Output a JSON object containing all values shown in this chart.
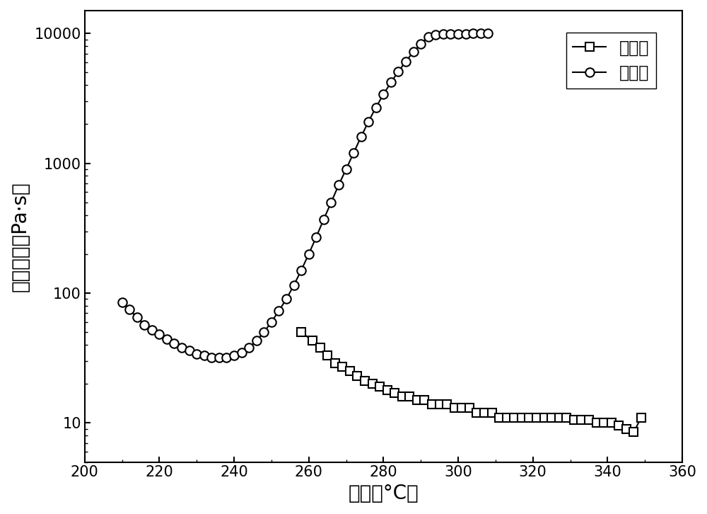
{
  "title": "",
  "xlabel": "温度（°C）",
  "ylabel": "复数粘度（Pa·s）",
  "xlim": [
    200,
    360
  ],
  "ylim_log": [
    5,
    15000
  ],
  "xticks": [
    200,
    220,
    240,
    260,
    280,
    300,
    320,
    340,
    360
  ],
  "yticks": [
    10,
    100,
    1000,
    10000
  ],
  "ytick_labels": [
    "10",
    "100",
    "1000",
    "10000"
  ],
  "legend1": "对比例",
  "legend2": "实施例",
  "series1_x": [
    258,
    261,
    263,
    265,
    267,
    269,
    271,
    273,
    275,
    277,
    279,
    281,
    283,
    285,
    287,
    289,
    291,
    293,
    295,
    297,
    299,
    301,
    303,
    305,
    307,
    309,
    311,
    313,
    315,
    317,
    319,
    321,
    323,
    325,
    327,
    329,
    331,
    333,
    335,
    337,
    339,
    341,
    343,
    345,
    347,
    349
  ],
  "series1_y": [
    50,
    43,
    38,
    33,
    29,
    27,
    25,
    23,
    21,
    20,
    19,
    18,
    17,
    16,
    16,
    15,
    15,
    14,
    14,
    14,
    13,
    13,
    13,
    12,
    12,
    12,
    11,
    11,
    11,
    11,
    11,
    11,
    11,
    11,
    11,
    11,
    10.5,
    10.5,
    10.5,
    10,
    10,
    10,
    9.5,
    9,
    8.5,
    11
  ],
  "series2_x": [
    210,
    212,
    214,
    216,
    218,
    220,
    222,
    224,
    226,
    228,
    230,
    232,
    234,
    236,
    238,
    240,
    242,
    244,
    246,
    248,
    250,
    252,
    254,
    256,
    258,
    260,
    262,
    264,
    266,
    268,
    270,
    272,
    274,
    276,
    278,
    280,
    282,
    284,
    286,
    288,
    290,
    292,
    294,
    296,
    298,
    300,
    302,
    304,
    306,
    308
  ],
  "series2_y": [
    85,
    75,
    65,
    57,
    52,
    48,
    44,
    41,
    38,
    36,
    34,
    33,
    32,
    32,
    32,
    33,
    35,
    38,
    43,
    50,
    60,
    73,
    90,
    115,
    150,
    200,
    270,
    370,
    500,
    680,
    900,
    1200,
    1600,
    2100,
    2700,
    3400,
    4200,
    5100,
    6100,
    7200,
    8300,
    9400,
    9800,
    9900,
    9950,
    9960,
    9970,
    9980,
    9990,
    9995
  ],
  "background_color": "#ffffff",
  "line_color": "#000000",
  "marker_size": 9,
  "font_size_label": 20,
  "font_size_tick": 15,
  "font_size_legend": 17
}
